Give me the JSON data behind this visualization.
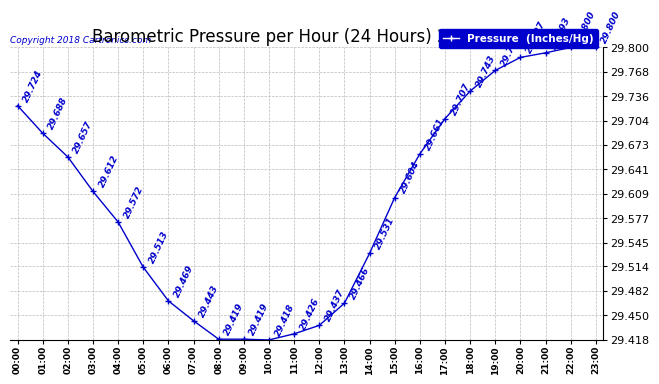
{
  "title": "Barometric Pressure per Hour (24 Hours) 20181028",
  "copyright": "Copyright 2018 Cartronics.com",
  "legend_label": "Pressure  (Inches/Hg)",
  "hours": [
    0,
    1,
    2,
    3,
    4,
    5,
    6,
    7,
    8,
    9,
    10,
    11,
    12,
    13,
    14,
    15,
    16,
    17,
    18,
    19,
    20,
    21,
    22,
    23
  ],
  "values": [
    29.724,
    29.688,
    29.657,
    29.612,
    29.572,
    29.513,
    29.469,
    29.443,
    29.419,
    29.419,
    29.418,
    29.426,
    29.437,
    29.466,
    29.531,
    29.604,
    29.661,
    29.707,
    29.743,
    29.77,
    29.787,
    29.793,
    29.8,
    29.8
  ],
  "ylim_min": 29.418,
  "ylim_max": 29.8,
  "yticks": [
    29.418,
    29.45,
    29.482,
    29.514,
    29.545,
    29.577,
    29.609,
    29.641,
    29.673,
    29.704,
    29.736,
    29.768,
    29.8
  ],
  "line_color": "#0000cc",
  "marker_color": "#0000cc",
  "bg_color": "#ffffff",
  "grid_color": "#bbbbbb",
  "title_color": "#000000",
  "legend_bg": "#0000cc",
  "legend_fg": "#ffffff",
  "copyright_color": "#0000cc",
  "label_color": "#0000cc",
  "label_fontsize": 6.5,
  "title_fontsize": 12
}
